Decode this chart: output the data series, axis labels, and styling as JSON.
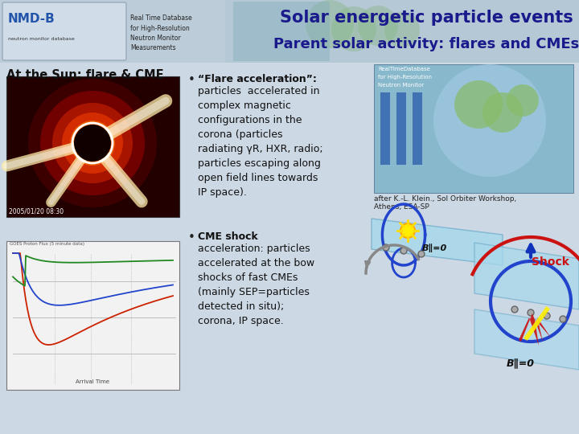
{
  "title_line1": "Solar energetic particle events",
  "title_line2": "Parent solar activity: flares and CMEs",
  "subtitle": "At the Sun: flare & CME",
  "bullet1_title": "“Flare acceleration”:",
  "bullet1_text": "particles  accelerated in\ncomplex magnetic\nconfigurations in the\ncorona (particles\nradiating γR, HXR, radio;\nparticles escaping along\nopen field lines towards\nIP space).",
  "bullet2_title": "CME shock",
  "bullet2_text": "acceleration: particles\naccelerated at the bow\nshocks of fast CMEs\n(mainly SEP=particles\ndetected in situ);\ncorona, IP space.",
  "caption": "after K.-L. Klein., Sol Orbiter Workshop,\nAthens, ESA-SP",
  "shock_label": "Shock",
  "b1_label": "B∥=0",
  "b2_label": "B∥=0",
  "slide_bg": "#c5d5e2",
  "header_bg": "#bcccd8",
  "title_color": "#1a1a8c",
  "text_color": "#111111"
}
